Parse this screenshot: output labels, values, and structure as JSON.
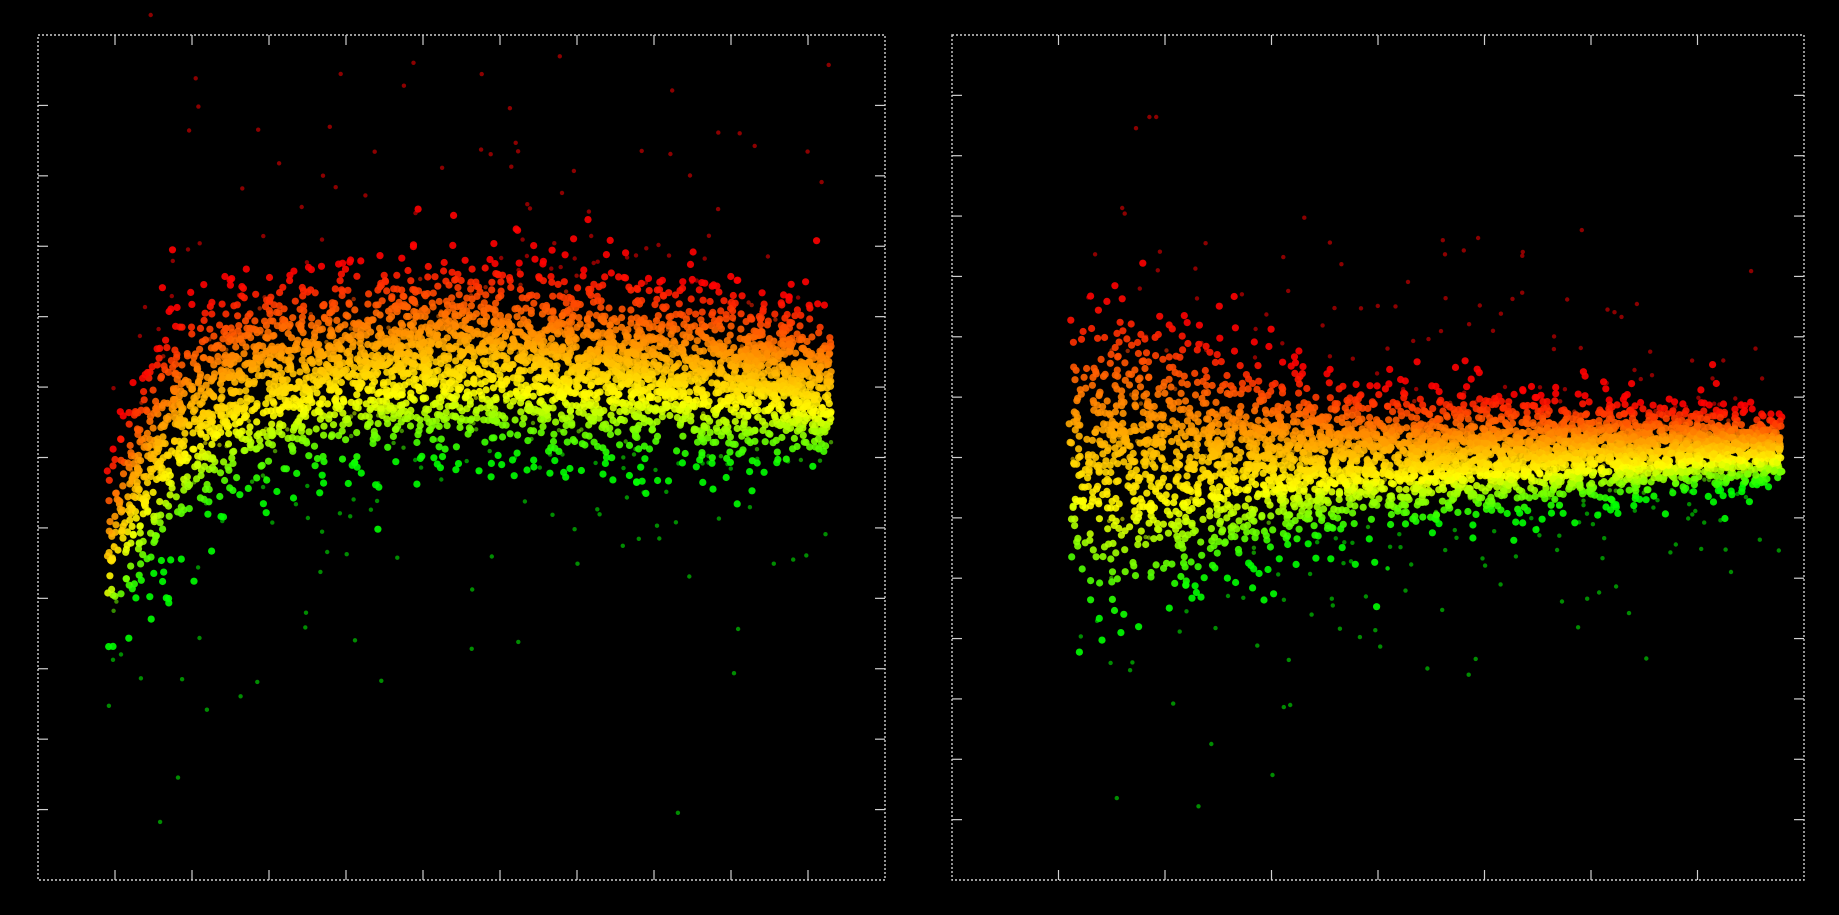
{
  "chart_data": [
    {
      "type": "scatter",
      "title": "",
      "xlabel": "",
      "ylabel": "",
      "xlim": [
        0,
        11
      ],
      "ylim": [
        -6,
        6
      ],
      "grid": false,
      "legend": "none",
      "colormap": [
        "#00ff00",
        "#ffff00",
        "#ff8800",
        "#ff0000"
      ],
      "background": "#000000",
      "density_band": {
        "x": [
          0.9,
          1.2,
          1.6,
          2.0,
          2.5,
          3.0,
          3.5,
          4.0,
          4.5,
          5.0,
          5.5,
          6.0,
          6.5,
          7.0,
          7.5,
          8.0,
          8.5,
          9.0,
          9.5,
          10.0,
          10.3
        ],
        "center": [
          -1.4,
          -0.6,
          0.1,
          0.6,
          0.9,
          1.1,
          1.2,
          1.3,
          1.35,
          1.4,
          1.4,
          1.4,
          1.35,
          1.3,
          1.3,
          1.25,
          1.2,
          1.15,
          1.1,
          1.05,
          1.0
        ],
        "spread": [
          0.8,
          0.9,
          1.0,
          1.0,
          0.95,
          0.95,
          0.9,
          0.9,
          0.9,
          0.9,
          0.9,
          0.85,
          0.85,
          0.85,
          0.85,
          0.8,
          0.8,
          0.8,
          0.75,
          0.75,
          0.7
        ]
      }
    },
    {
      "type": "scatter",
      "title": "",
      "xlabel": "",
      "ylabel": "",
      "xlim": [
        0,
        16
      ],
      "ylim": [
        -7,
        7
      ],
      "grid": false,
      "legend": "none",
      "colormap": [
        "#00ff00",
        "#ffff00",
        "#ff8800",
        "#ff0000"
      ],
      "background": "#000000",
      "density_band": {
        "x": [
          2.2,
          2.6,
          3.2,
          4.0,
          5.0,
          6.0,
          7.0,
          8.0,
          9.0,
          10.0,
          11.0,
          12.0,
          13.0,
          14.0,
          15.0,
          15.6
        ],
        "center": [
          0.2,
          0.0,
          0.0,
          0.0,
          0.0,
          0.0,
          0.0,
          0.0,
          0.0,
          0.05,
          0.05,
          0.1,
          0.1,
          0.15,
          0.15,
          0.15
        ],
        "spread": [
          1.4,
          1.6,
          1.7,
          1.5,
          1.2,
          1.0,
          0.85,
          0.75,
          0.7,
          0.65,
          0.6,
          0.55,
          0.5,
          0.45,
          0.4,
          0.35
        ]
      }
    }
  ]
}
